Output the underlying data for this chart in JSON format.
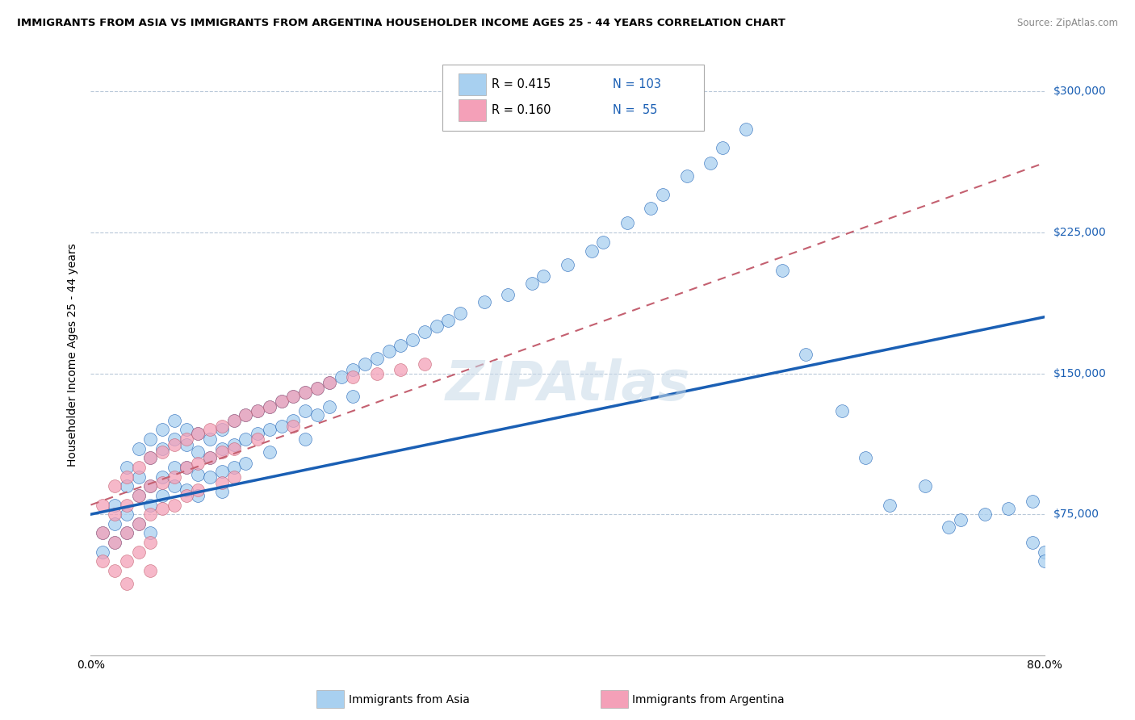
{
  "title": "IMMIGRANTS FROM ASIA VS IMMIGRANTS FROM ARGENTINA HOUSEHOLDER INCOME AGES 25 - 44 YEARS CORRELATION CHART",
  "source": "Source: ZipAtlas.com",
  "ylabel": "Householder Income Ages 25 - 44 years",
  "watermark": "ZIPAtlas",
  "asia_R": 0.415,
  "asia_N": 103,
  "arg_R": 0.16,
  "arg_N": 55,
  "xlim": [
    0.0,
    0.8
  ],
  "ylim": [
    0,
    320000
  ],
  "xticks": [
    0.0,
    0.1,
    0.2,
    0.3,
    0.4,
    0.5,
    0.6,
    0.7,
    0.8
  ],
  "xticklabels": [
    "0.0%",
    "",
    "",
    "",
    "",
    "",
    "",
    "",
    "80.0%"
  ],
  "yticks": [
    0,
    75000,
    150000,
    225000,
    300000
  ],
  "yticklabels": [
    "",
    "$75,000",
    "$150,000",
    "$225,000",
    "$300,000"
  ],
  "asia_color": "#a8d0f0",
  "arg_color": "#f4a0b8",
  "asia_line_color": "#1a5fb4",
  "arg_line_color": "#c46070",
  "asia_scatter_x": [
    0.01,
    0.01,
    0.02,
    0.02,
    0.02,
    0.03,
    0.03,
    0.03,
    0.03,
    0.04,
    0.04,
    0.04,
    0.04,
    0.05,
    0.05,
    0.05,
    0.05,
    0.05,
    0.06,
    0.06,
    0.06,
    0.06,
    0.07,
    0.07,
    0.07,
    0.07,
    0.08,
    0.08,
    0.08,
    0.08,
    0.09,
    0.09,
    0.09,
    0.09,
    0.1,
    0.1,
    0.1,
    0.11,
    0.11,
    0.11,
    0.11,
    0.12,
    0.12,
    0.12,
    0.13,
    0.13,
    0.13,
    0.14,
    0.14,
    0.15,
    0.15,
    0.15,
    0.16,
    0.16,
    0.17,
    0.17,
    0.18,
    0.18,
    0.18,
    0.19,
    0.19,
    0.2,
    0.2,
    0.21,
    0.22,
    0.22,
    0.23,
    0.24,
    0.25,
    0.26,
    0.27,
    0.28,
    0.29,
    0.3,
    0.31,
    0.33,
    0.35,
    0.37,
    0.38,
    0.4,
    0.42,
    0.43,
    0.45,
    0.47,
    0.48,
    0.5,
    0.52,
    0.53,
    0.55,
    0.58,
    0.6,
    0.63,
    0.65,
    0.67,
    0.7,
    0.72,
    0.73,
    0.75,
    0.77,
    0.79,
    0.79,
    0.8,
    0.8
  ],
  "asia_scatter_y": [
    65000,
    55000,
    80000,
    70000,
    60000,
    100000,
    90000,
    75000,
    65000,
    110000,
    95000,
    85000,
    70000,
    115000,
    105000,
    90000,
    80000,
    65000,
    120000,
    110000,
    95000,
    85000,
    125000,
    115000,
    100000,
    90000,
    120000,
    112000,
    100000,
    88000,
    118000,
    108000,
    96000,
    85000,
    115000,
    105000,
    95000,
    120000,
    110000,
    98000,
    87000,
    125000,
    112000,
    100000,
    128000,
    115000,
    102000,
    130000,
    118000,
    132000,
    120000,
    108000,
    135000,
    122000,
    138000,
    125000,
    140000,
    130000,
    115000,
    142000,
    128000,
    145000,
    132000,
    148000,
    152000,
    138000,
    155000,
    158000,
    162000,
    165000,
    168000,
    172000,
    175000,
    178000,
    182000,
    188000,
    192000,
    198000,
    202000,
    208000,
    215000,
    220000,
    230000,
    238000,
    245000,
    255000,
    262000,
    270000,
    280000,
    205000,
    160000,
    130000,
    105000,
    80000,
    90000,
    68000,
    72000,
    75000,
    78000,
    82000,
    60000,
    55000,
    50000
  ],
  "arg_scatter_x": [
    0.01,
    0.01,
    0.01,
    0.02,
    0.02,
    0.02,
    0.02,
    0.03,
    0.03,
    0.03,
    0.03,
    0.03,
    0.04,
    0.04,
    0.04,
    0.04,
    0.05,
    0.05,
    0.05,
    0.05,
    0.05,
    0.06,
    0.06,
    0.06,
    0.07,
    0.07,
    0.07,
    0.08,
    0.08,
    0.08,
    0.09,
    0.09,
    0.09,
    0.1,
    0.1,
    0.11,
    0.11,
    0.11,
    0.12,
    0.12,
    0.12,
    0.13,
    0.14,
    0.14,
    0.15,
    0.16,
    0.17,
    0.17,
    0.18,
    0.19,
    0.2,
    0.22,
    0.24,
    0.26,
    0.28
  ],
  "arg_scatter_y": [
    80000,
    65000,
    50000,
    90000,
    75000,
    60000,
    45000,
    95000,
    80000,
    65000,
    50000,
    38000,
    100000,
    85000,
    70000,
    55000,
    105000,
    90000,
    75000,
    60000,
    45000,
    108000,
    92000,
    78000,
    112000,
    95000,
    80000,
    115000,
    100000,
    85000,
    118000,
    102000,
    88000,
    120000,
    105000,
    122000,
    108000,
    92000,
    125000,
    110000,
    95000,
    128000,
    130000,
    115000,
    132000,
    135000,
    138000,
    122000,
    140000,
    142000,
    145000,
    148000,
    150000,
    152000,
    155000
  ]
}
